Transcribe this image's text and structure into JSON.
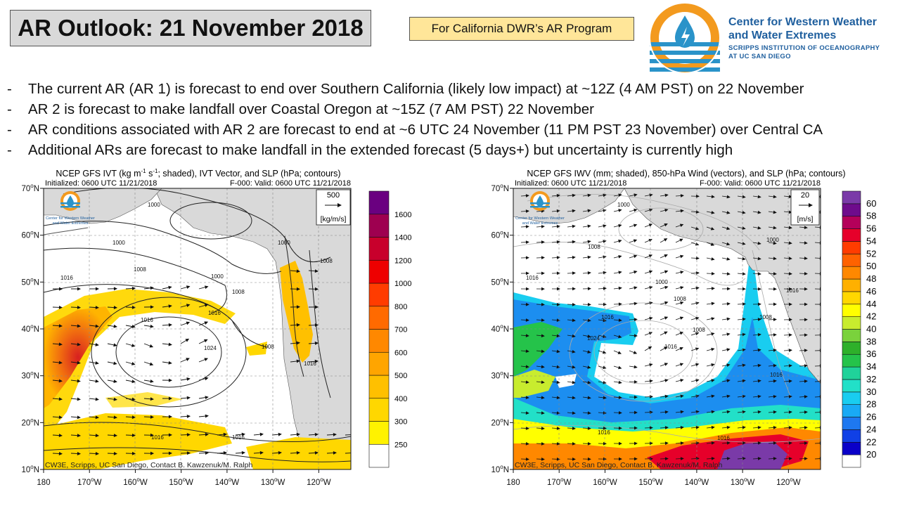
{
  "header": {
    "title": "AR Outlook: 21 November 2018",
    "program": "For California DWR’s AR Program",
    "logo": {
      "line1": "Center for Western Weather",
      "line2": "and Water Extremes",
      "line3": "SCRIPPS INSTITUTION OF OCEANOGRAPHY",
      "line4": "AT UC SAN DIEGO",
      "icon": "water-drop-sun-icon",
      "colors": {
        "blue": "#1f5f9e",
        "orange": "#f39a1e",
        "teal": "#2a93c9"
      }
    }
  },
  "bullets": [
    "The current AR (AR 1) is forecast to end over Southern California (likely low impact) at ~12Z (4 AM PST) on 22 November",
    "AR 2 is forecast to make landfall over Coastal Oregon at ~15Z (7 AM PST) 22 November",
    "AR conditions associated with AR 2 are forecast to end at ~6 UTC 24 November (11 PM PST 23 November) over Central CA",
    "Additional ARs are forecast to make landfall in the extended forecast (5 days+) but uncertainty is currently high"
  ],
  "chart_data": [
    {
      "type": "heatmap",
      "title_prefix": "NCEP GFS IVT (kg m",
      "title_sup1": "-1",
      "title_mid": " s",
      "title_sup2": "-1",
      "title_suffix": "; shaded), IVT Vector, and SLP (hPa; contours)",
      "init": "Initialized: 0600 UTC 11/21/2018",
      "valid": "F-000: Valid: 0600 UTC 11/21/2018",
      "vector_ref": "500",
      "vector_unit": "[kg/m/s]",
      "credit": "CW3E, Scripps, UC San Diego, Contact B. Kawzenuk/M. Ralph",
      "logo_text1": "Center for Western Weather",
      "logo_text2": "and Water Extremes",
      "x_ticks": [
        "180",
        "170",
        "160",
        "150",
        "140",
        "130",
        "120"
      ],
      "x_suffix": "W",
      "y_ticks": [
        "10",
        "20",
        "30",
        "40",
        "50",
        "60",
        "70"
      ],
      "y_suffix": "N",
      "lon_range": [
        -180,
        -113
      ],
      "lat_range": [
        10,
        70
      ],
      "colorbar": {
        "labels": [
          "250",
          "300",
          "400",
          "500",
          "600",
          "700",
          "800",
          "1000",
          "1200",
          "1400",
          "1600"
        ],
        "colors": [
          "#ffffff",
          "#fff200",
          "#ffd700",
          "#ffc000",
          "#ffa500",
          "#ff8800",
          "#ff6a00",
          "#ff3c00",
          "#ee0000",
          "#c8002c",
          "#9e0050",
          "#6a0080"
        ]
      },
      "contour_labels": [
        "1000",
        "1000",
        "1008",
        "1016",
        "1000",
        "1008",
        "1016",
        "1024",
        "1008",
        "1016",
        "1016",
        "1016",
        "1008",
        "1000",
        "1016"
      ]
    },
    {
      "type": "heatmap",
      "title": "NCEP GFS IWV (mm; shaded), 850-hPa Wind (vectors), and SLP (hPa; contours)",
      "init": "Initialized: 0600 UTC 11/21/2018",
      "valid": "F-000: Valid: 0600 UTC 11/21/2018",
      "vector_ref": "20",
      "vector_unit": "[m/s]",
      "credit": "CW3E, Scripps, UC San Diego, Contact B. Kawzenuk/M. Ralph",
      "logo_text1": "Center for Western Weather",
      "logo_text2": "and Water Extremes",
      "x_ticks": [
        "180",
        "170",
        "160",
        "150",
        "140",
        "130",
        "120"
      ],
      "x_suffix": "W",
      "y_ticks": [
        "10",
        "20",
        "30",
        "40",
        "50",
        "60",
        "70"
      ],
      "y_suffix": "N",
      "lon_range": [
        -180,
        -113
      ],
      "lat_range": [
        10,
        70
      ],
      "colorbar": {
        "labels": [
          "20",
          "22",
          "24",
          "26",
          "28",
          "30",
          "32",
          "34",
          "36",
          "38",
          "40",
          "42",
          "44",
          "46",
          "48",
          "50",
          "52",
          "54",
          "56",
          "58",
          "60"
        ],
        "colors": [
          "#ffffff",
          "#0a00c8",
          "#1040e6",
          "#1e78f0",
          "#19aaf5",
          "#19cdf0",
          "#22e0c8",
          "#20d29a",
          "#25c34a",
          "#2eb02a",
          "#7ad23c",
          "#c8ec2e",
          "#ffff00",
          "#ffd700",
          "#ffb000",
          "#ff8800",
          "#ff6200",
          "#ff3c00",
          "#e6002a",
          "#b4005a",
          "#6e0b8c",
          "#7a3aa8"
        ]
      },
      "contour_labels": [
        "1000",
        "1008",
        "1000",
        "1016",
        "1008",
        "1000",
        "1016",
        "1016",
        "1024",
        "1008",
        "1016",
        "1008",
        "1016",
        "1016",
        "1016"
      ]
    }
  ]
}
